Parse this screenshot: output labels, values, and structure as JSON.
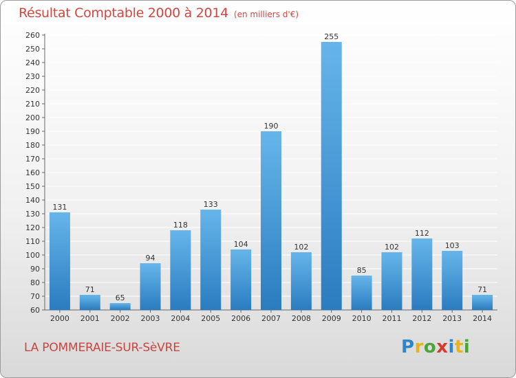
{
  "header": {
    "title": "Résultat Comptable 2000 à 2014",
    "unit": "(en milliers d'€)"
  },
  "footer": {
    "commune": "LA POMMERAIE-SUR-SèVRE",
    "logo": "Proxiti",
    "logo_colors": [
      "#2e86c7",
      "#e8b31a",
      "#4ba63a",
      "#d93a2f",
      "#2e86c7",
      "#e8b31a",
      "#4ba63a"
    ]
  },
  "colors": {
    "bar_light": "#66b5ea",
    "bar_dark": "#2a7cc0",
    "axis": "#666666",
    "grid": "#ffffff",
    "title": "#d2463f"
  },
  "chart_data": {
    "type": "bar",
    "title": "Résultat Comptable 2000 à 2014",
    "ylabel": "(en milliers d'€)",
    "xlabel": "",
    "categories": [
      "2000",
      "2001",
      "2002",
      "2003",
      "2004",
      "2005",
      "2006",
      "2007",
      "2008",
      "2009",
      "2010",
      "2011",
      "2012",
      "2013",
      "2014"
    ],
    "values": [
      131,
      71,
      65,
      94,
      118,
      133,
      104,
      190,
      102,
      255,
      85,
      102,
      112,
      103,
      71
    ],
    "ylim": [
      60,
      260
    ],
    "ytick_step": 10,
    "grid": true
  }
}
